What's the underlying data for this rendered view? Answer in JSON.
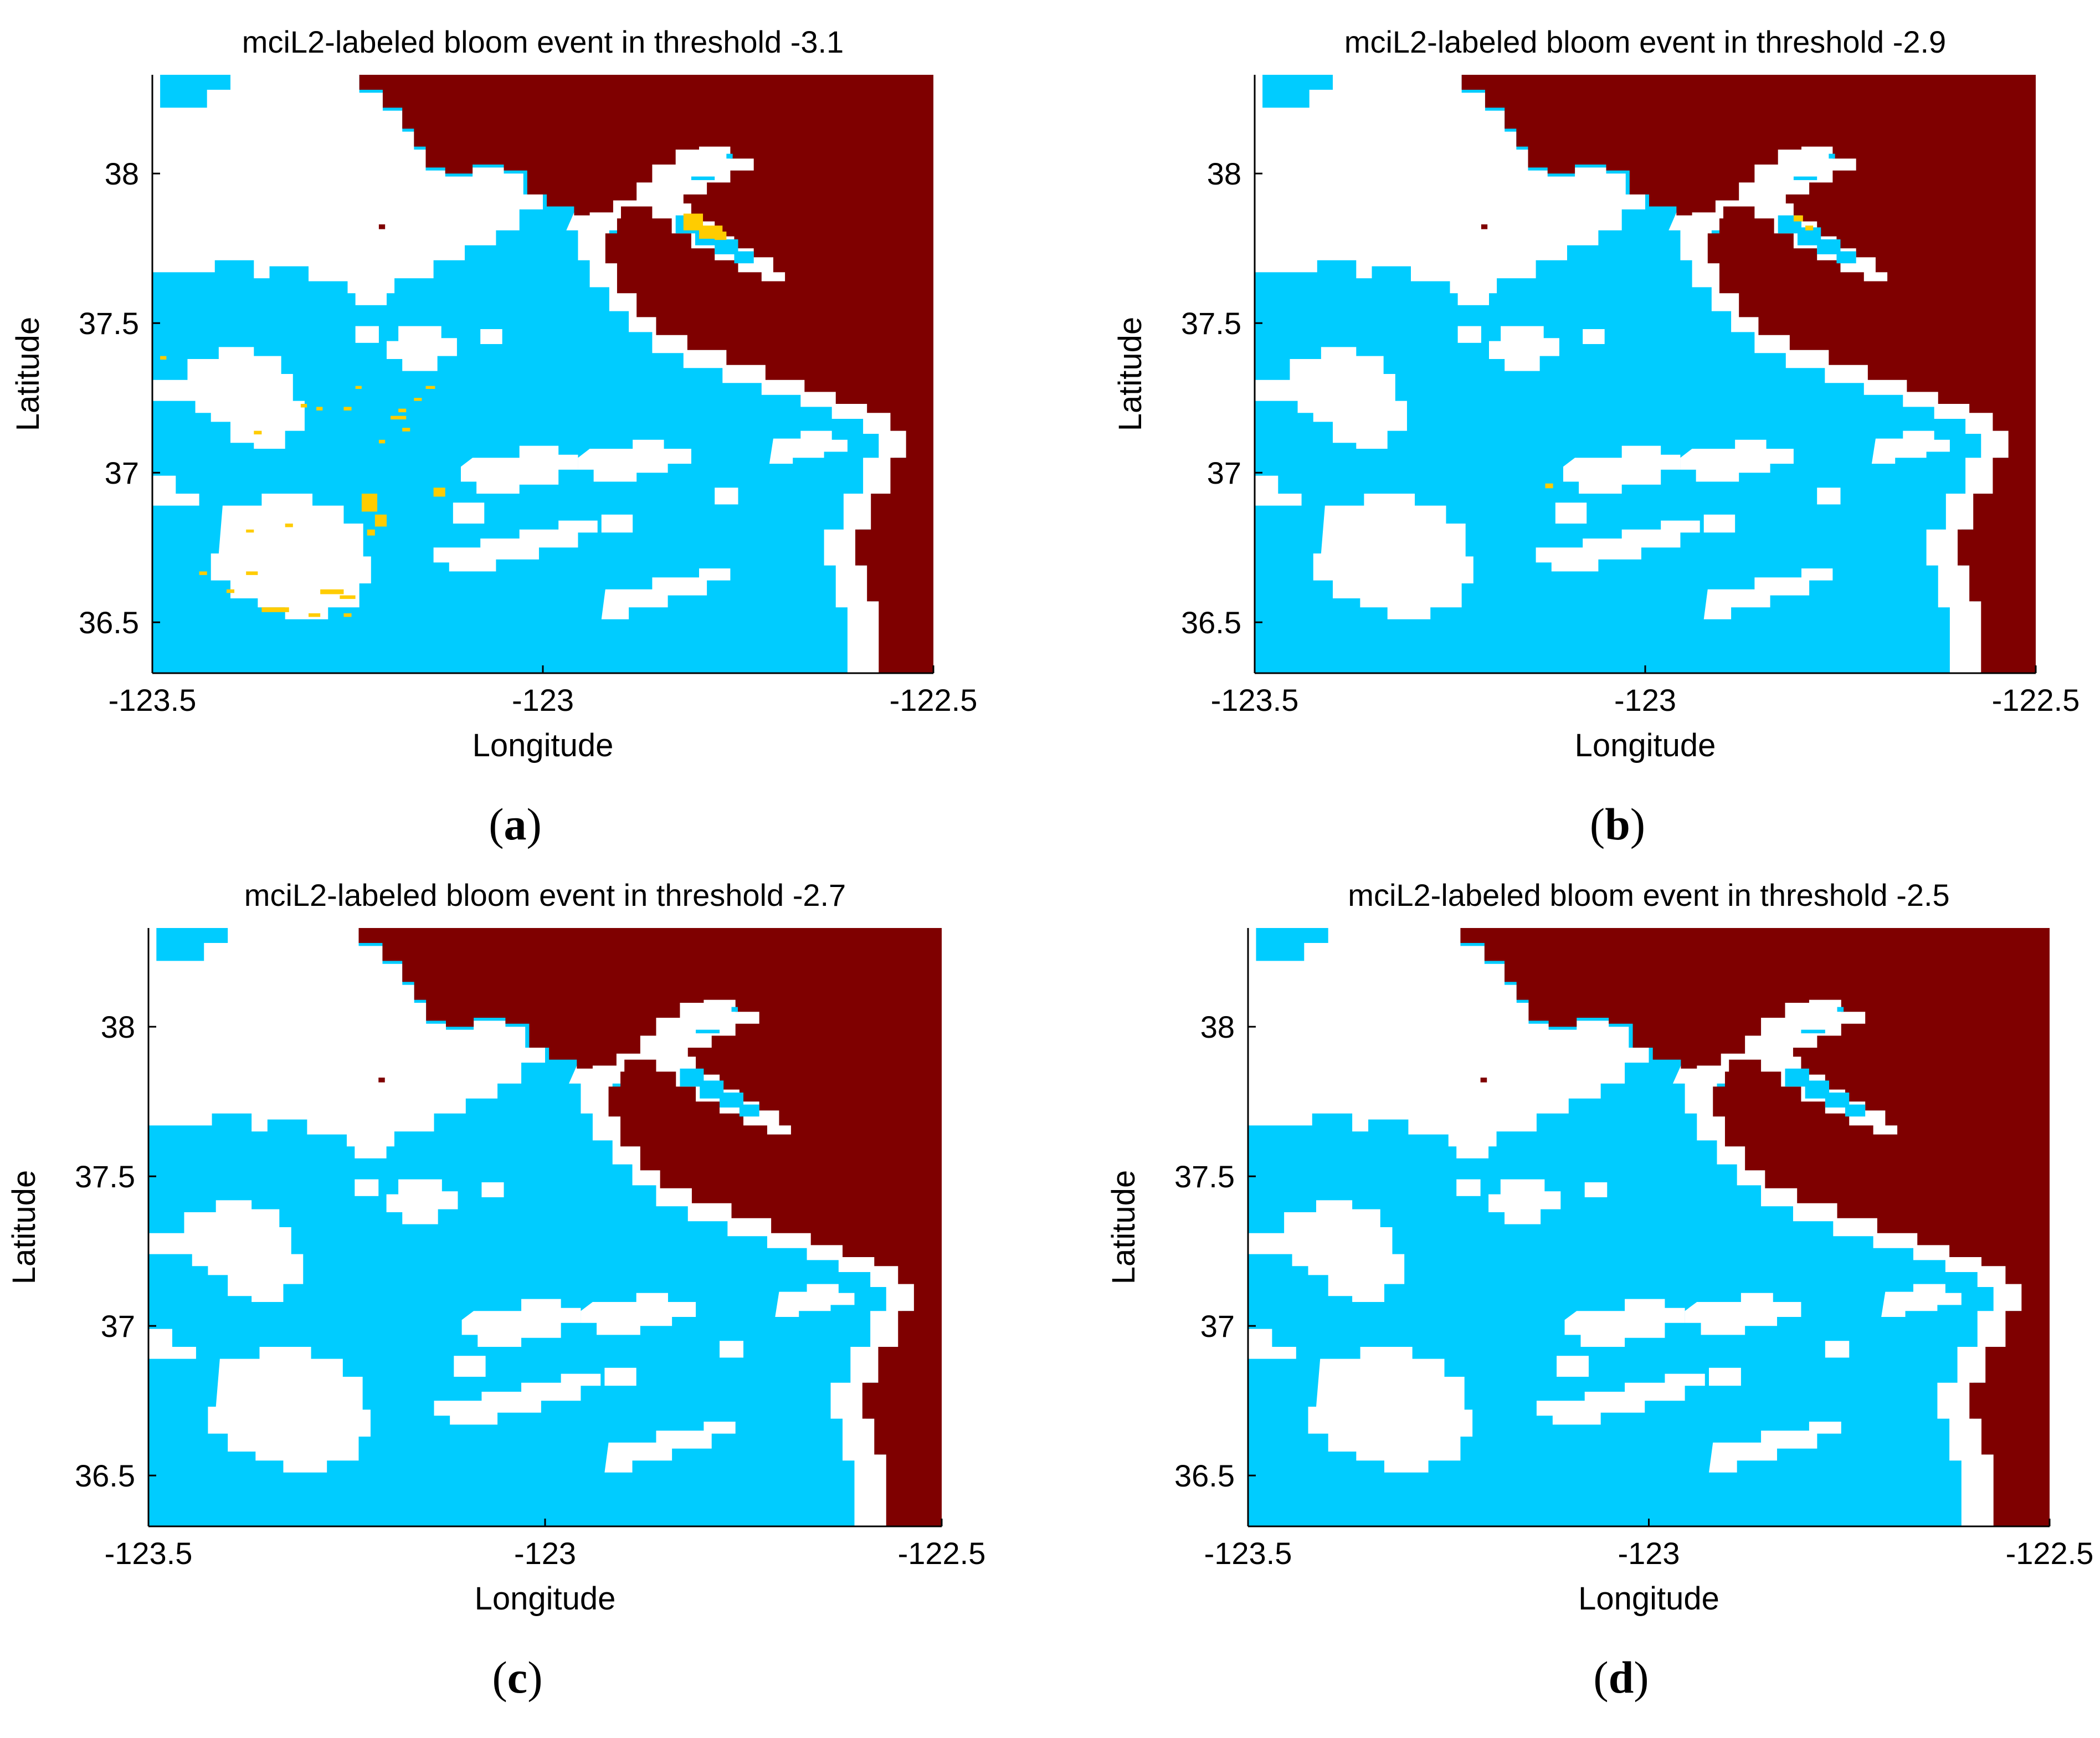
{
  "figure": {
    "colors": {
      "land": "#7f0000",
      "water": "#00ccff",
      "cloud": "#ffffff",
      "bloom": "#ffcc00"
    },
    "panels": [
      {
        "letter": "a",
        "title": "mciL2-labeled bloom event in threshold -3.1",
        "xlabel": "Longitude",
        "ylabel": "Latitude",
        "xticks": [
          "-123.5",
          "-123",
          "-122.5"
        ],
        "yticks": [
          "38",
          "37.5",
          "37",
          "36.5"
        ],
        "xlim": [
          -123.5,
          -122.5
        ],
        "ylim": [
          36.33,
          38.33
        ],
        "bloom_level": "heavy"
      },
      {
        "letter": "b",
        "title": "mciL2-labeled bloom event in threshold -2.9",
        "xlabel": "Longitude",
        "ylabel": "Latitude",
        "xticks": [
          "-123.5",
          "-123",
          "-122.5"
        ],
        "yticks": [
          "38",
          "37.5",
          "37",
          "36.5"
        ],
        "xlim": [
          -123.5,
          -122.5
        ],
        "ylim": [
          36.33,
          38.33
        ],
        "bloom_level": "light"
      },
      {
        "letter": "c",
        "title": "mciL2-labeled bloom event in threshold -2.7",
        "xlabel": "Longitude",
        "ylabel": "Latitude",
        "xticks": [
          "-123.5",
          "-123",
          "-122.5"
        ],
        "yticks": [
          "38",
          "37.5",
          "37",
          "36.5"
        ],
        "xlim": [
          -123.5,
          -122.5
        ],
        "ylim": [
          36.33,
          38.33
        ],
        "bloom_level": "none"
      },
      {
        "letter": "d",
        "title": "mciL2-labeled bloom event in threshold -2.5",
        "xlabel": "Longitude",
        "ylabel": "Latitude",
        "xticks": [
          "-123.5",
          "-123",
          "-122.5"
        ],
        "yticks": [
          "38",
          "37.5",
          "37",
          "36.5"
        ],
        "xlim": [
          -123.5,
          -122.5
        ],
        "ylim": [
          36.33,
          38.33
        ],
        "bloom_level": "none"
      }
    ]
  }
}
